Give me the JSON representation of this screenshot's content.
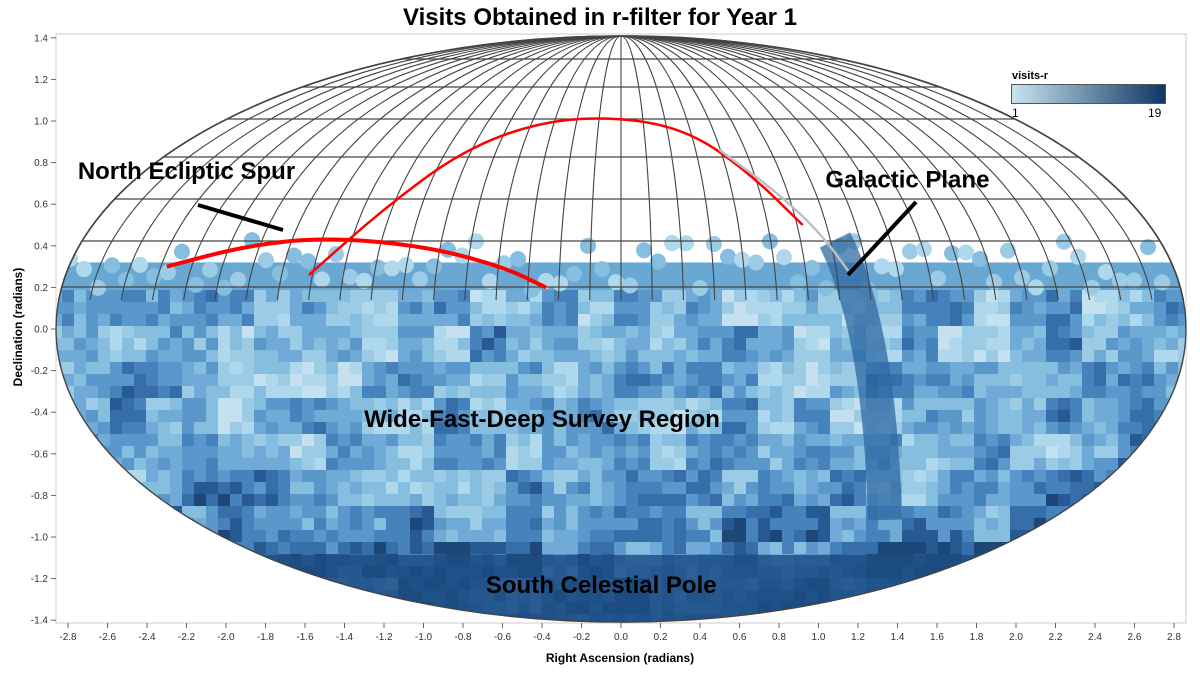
{
  "chart_data": {
    "type": "heatmap",
    "projection": "mollweide",
    "title": "Visits Obtained in r-filter for Year 1",
    "xlabel": "Right Ascension (radians)",
    "ylabel": "Declination (radians)",
    "xlim": [
      -2.85,
      2.85
    ],
    "ylim": [
      -1.42,
      1.42
    ],
    "x_ticks": [
      "-2.8",
      "-2.6",
      "-2.4",
      "-2.2",
      "-2.0",
      "-1.8",
      "-1.6",
      "-1.4",
      "-1.2",
      "-1.0",
      "-0.8",
      "-0.6",
      "-0.4",
      "-0.2",
      "0.0",
      "0.2",
      "0.4",
      "0.6",
      "0.8",
      "1.0",
      "1.2",
      "1.4",
      "1.6",
      "1.8",
      "2.0",
      "2.2",
      "2.4",
      "2.6",
      "2.8"
    ],
    "y_ticks": [
      "1.4",
      "1.2",
      "1.0",
      "0.8",
      "0.6",
      "0.4",
      "0.2",
      "0.0",
      "-0.2",
      "-0.4",
      "-0.6",
      "-0.8",
      "-1.0",
      "-1.2",
      "-1.4"
    ],
    "colorbar": {
      "label": "visits-r",
      "min": 1,
      "max": 19,
      "colors": [
        "#c8e3f0",
        "#0f3763"
      ]
    },
    "survey_coverage_max_dec": 0.32,
    "annotations": [
      {
        "text": "North Ecliptic Spur",
        "x": -2.2,
        "y": 0.72
      },
      {
        "text": "Galactic Plane",
        "x": 1.45,
        "y": 0.68
      },
      {
        "text": "Wide-Fast-Deep Survey Region",
        "x": -0.4,
        "y": -0.47
      },
      {
        "text": "South Celestial Pole",
        "x": -0.1,
        "y": -1.27
      }
    ],
    "series": [
      {
        "name": "",
        "color": "#ff0000",
        "points": [
          [
            -2.3,
            0.3
          ],
          [
            -1.9,
            0.4
          ],
          [
            -1.5,
            0.44
          ],
          [
            -1.0,
            0.4
          ],
          [
            -0.6,
            0.3
          ],
          [
            -0.38,
            0.2
          ]
        ]
      },
      {
        "name": "",
        "color": "#ff0000",
        "points": [
          [
            -1.58,
            0.26
          ],
          [
            -1.2,
            0.58
          ],
          [
            -0.8,
            0.86
          ],
          [
            -0.4,
            1.0
          ],
          [
            0.0,
            1.02
          ],
          [
            0.35,
            0.95
          ],
          [
            0.65,
            0.75
          ],
          [
            0.92,
            0.5
          ]
        ]
      },
      {
        "name": "",
        "color": "#bfbfbf",
        "points": [
          [
            0.5,
            0.86
          ],
          [
            0.8,
            0.65
          ],
          [
            1.02,
            0.45
          ],
          [
            1.15,
            0.28
          ]
        ]
      }
    ]
  }
}
